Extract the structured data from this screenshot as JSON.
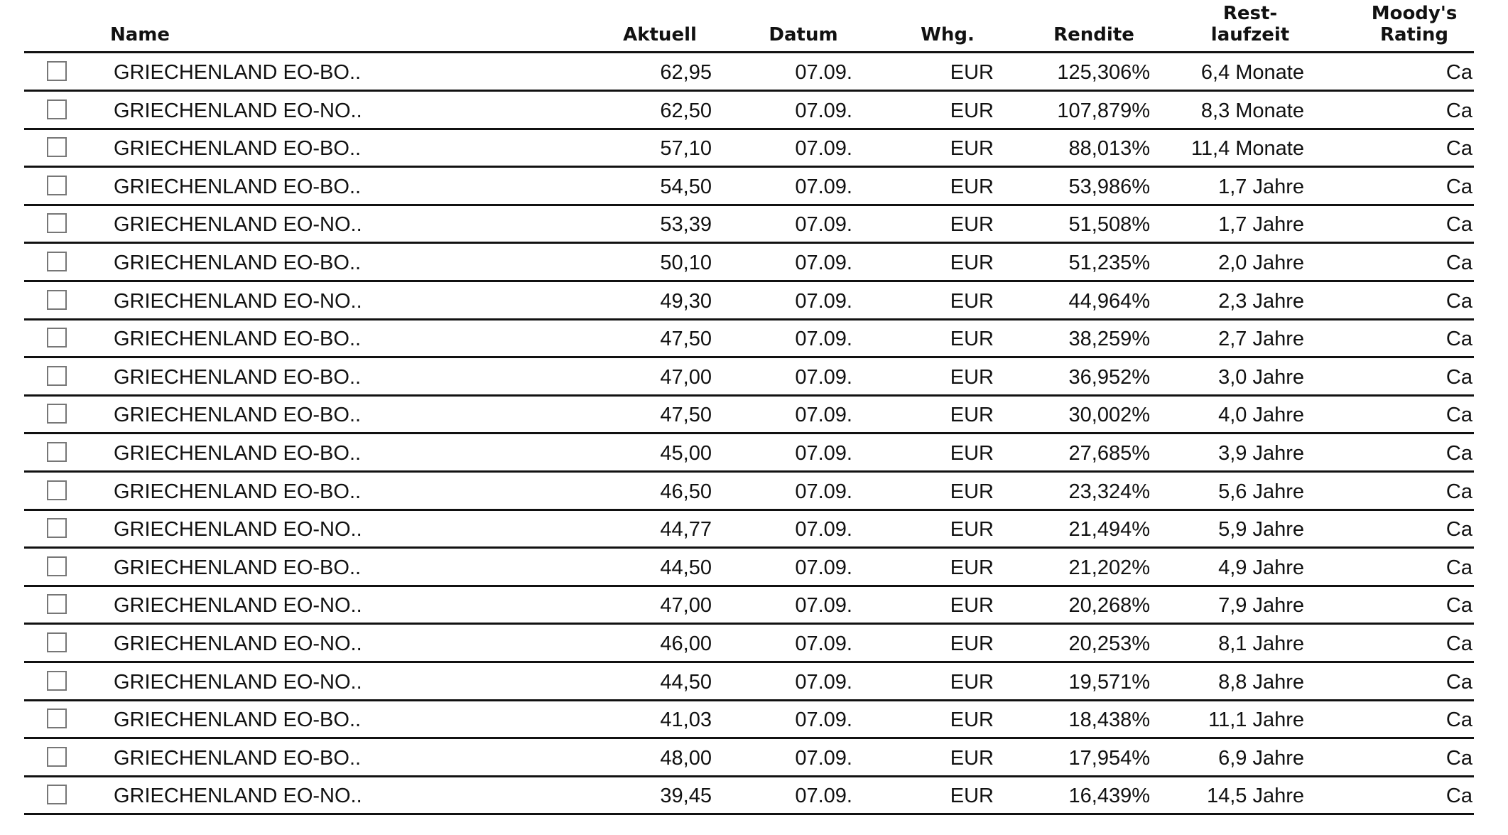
{
  "table": {
    "header": [
      "Name",
      "Aktuell",
      "Datum",
      "Whg.",
      "Rendite",
      "Rest-\nlaufzeit",
      "Moody's\nRating"
    ],
    "rows": [
      [
        "GRIECHENLAND EO-BO..",
        "62,95",
        "07.09.",
        "EUR",
        "125,306%",
        "6,4 Monate",
        "Ca"
      ],
      [
        "GRIECHENLAND EO-NO..",
        "62,50",
        "07.09.",
        "EUR",
        "107,879%",
        "8,3 Monate",
        "Ca"
      ],
      [
        "GRIECHENLAND EO-BO..",
        "57,10",
        "07.09.",
        "EUR",
        "88,013%",
        "11,4 Monate",
        "Ca"
      ],
      [
        "GRIECHENLAND EO-BO..",
        "54,50",
        "07.09.",
        "EUR",
        "53,986%",
        "1,7 Jahre",
        "Ca"
      ],
      [
        "GRIECHENLAND EO-NO..",
        "53,39",
        "07.09.",
        "EUR",
        "51,508%",
        "1,7 Jahre",
        "Ca"
      ],
      [
        "GRIECHENLAND EO-BO..",
        "50,10",
        "07.09.",
        "EUR",
        "51,235%",
        "2,0 Jahre",
        "Ca"
      ],
      [
        "GRIECHENLAND EO-NO..",
        "49,30",
        "07.09.",
        "EUR",
        "44,964%",
        "2,3 Jahre",
        "Ca"
      ],
      [
        "GRIECHENLAND EO-BO..",
        "47,50",
        "07.09.",
        "EUR",
        "38,259%",
        "2,7 Jahre",
        "Ca"
      ],
      [
        "GRIECHENLAND EO-BO..",
        "47,00",
        "07.09.",
        "EUR",
        "36,952%",
        "3,0 Jahre",
        "Ca"
      ],
      [
        "GRIECHENLAND EO-BO..",
        "47,50",
        "07.09.",
        "EUR",
        "30,002%",
        "4,0 Jahre",
        "Ca"
      ],
      [
        "GRIECHENLAND EO-BO..",
        "45,00",
        "07.09.",
        "EUR",
        "27,685%",
        "3,9 Jahre",
        "Ca"
      ],
      [
        "GRIECHENLAND EO-BO..",
        "46,50",
        "07.09.",
        "EUR",
        "23,324%",
        "5,6 Jahre",
        "Ca"
      ],
      [
        "GRIECHENLAND EO-NO..",
        "44,77",
        "07.09.",
        "EUR",
        "21,494%",
        "5,9 Jahre",
        "Ca"
      ],
      [
        "GRIECHENLAND EO-BO..",
        "44,50",
        "07.09.",
        "EUR",
        "21,202%",
        "4,9 Jahre",
        "Ca"
      ],
      [
        "GRIECHENLAND EO-NO..",
        "47,00",
        "07.09.",
        "EUR",
        "20,268%",
        "7,9 Jahre",
        "Ca"
      ],
      [
        "GRIECHENLAND EO-NO..",
        "46,00",
        "07.09.",
        "EUR",
        "20,253%",
        "8,1 Jahre",
        "Ca"
      ],
      [
        "GRIECHENLAND EO-NO..",
        "44,50",
        "07.09.",
        "EUR",
        "19,571%",
        "8,8 Jahre",
        "Ca"
      ],
      [
        "GRIECHENLAND EO-BO..",
        "41,03",
        "07.09.",
        "EUR",
        "18,438%",
        "11,1 Jahre",
        "Ca"
      ],
      [
        "GRIECHENLAND EO-BO..",
        "48,00",
        "07.09.",
        "EUR",
        "17,954%",
        "6,9 Jahre",
        "Ca"
      ],
      [
        "GRIECHENLAND EO-NO..",
        "39,45",
        "07.09.",
        "EUR",
        "16,439%",
        "14,5 Jahre",
        "Ca"
      ]
    ]
  }
}
